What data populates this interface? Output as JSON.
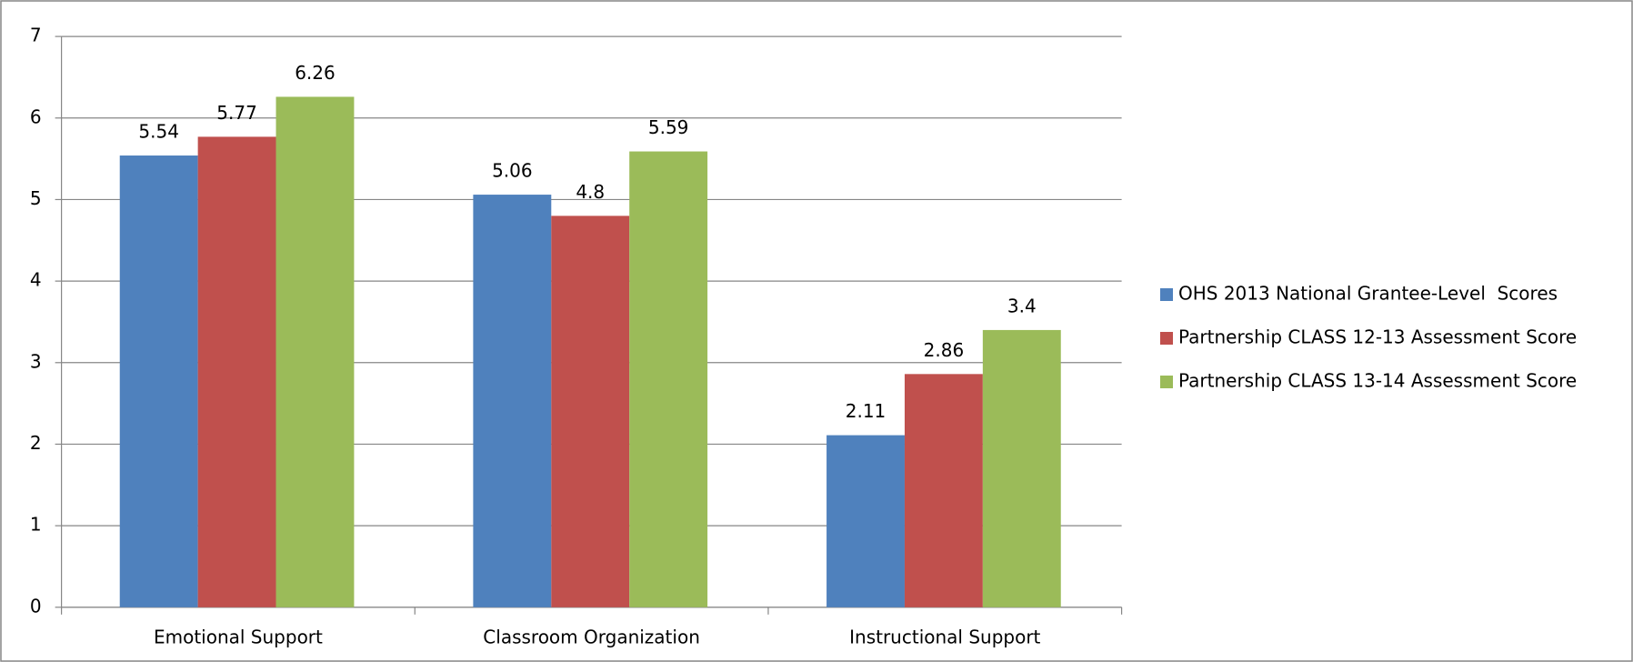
{
  "chart_data": {
    "type": "bar",
    "categories": [
      "Emotional Support",
      "Classroom Organization",
      "Instructional Support"
    ],
    "series": [
      {
        "name": "OHS 2013 National Grantee-Level  Scores",
        "color": "#4f81bd",
        "values": [
          5.54,
          5.06,
          2.11
        ]
      },
      {
        "name": "Partnership CLASS 12-13 Assessment Score",
        "color": "#c0504d",
        "values": [
          5.77,
          4.8,
          2.86
        ]
      },
      {
        "name": "Partnership CLASS 13-14 Assessment Score",
        "color": "#9bbb59",
        "values": [
          6.26,
          5.59,
          3.4
        ]
      }
    ],
    "ylim": [
      0,
      7
    ],
    "yticks": [
      0,
      1,
      2,
      3,
      4,
      5,
      6,
      7
    ],
    "grid": true,
    "legend": "right"
  }
}
